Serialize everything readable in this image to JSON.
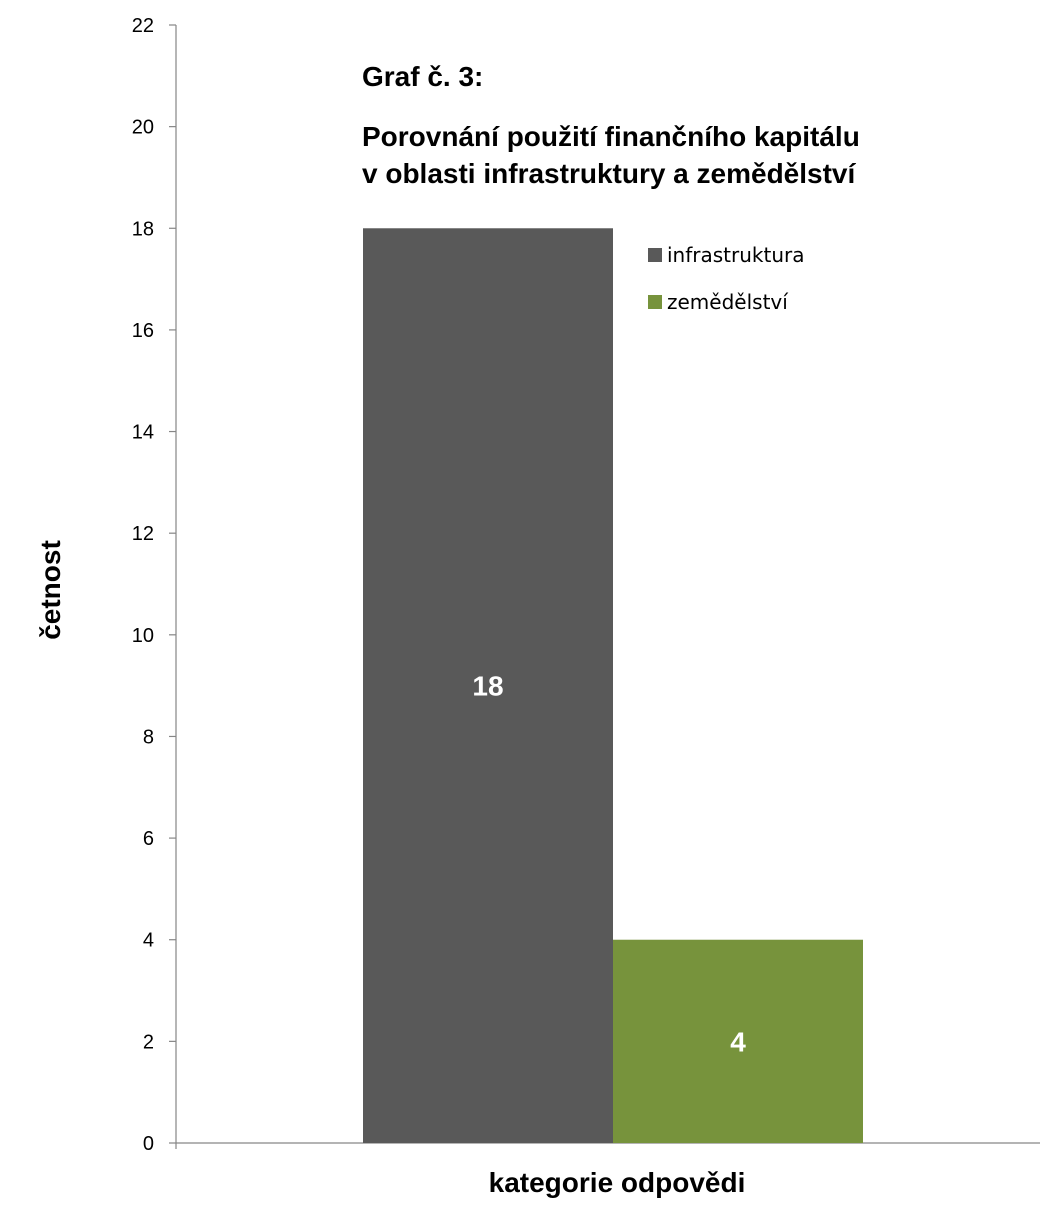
{
  "chart_data": {
    "type": "bar",
    "title_line1": "Graf č. 3:",
    "title_line2": "Porovnání použití finančního kapitálu",
    "title_line3": "v oblasti infrastruktury a zemědělství",
    "xlabel": "kategorie odpovědi",
    "ylabel": "četnost",
    "ylim": [
      0,
      22
    ],
    "yticks": [
      0,
      2,
      4,
      6,
      8,
      10,
      12,
      14,
      16,
      18,
      20,
      22
    ],
    "grid": false,
    "legend_position": "top-right",
    "series": [
      {
        "name": "infrastruktura",
        "value": 18,
        "label": "18",
        "color": "#595959"
      },
      {
        "name": "zemědělství",
        "value": 4,
        "label": "4",
        "color": "#77933c"
      }
    ]
  }
}
